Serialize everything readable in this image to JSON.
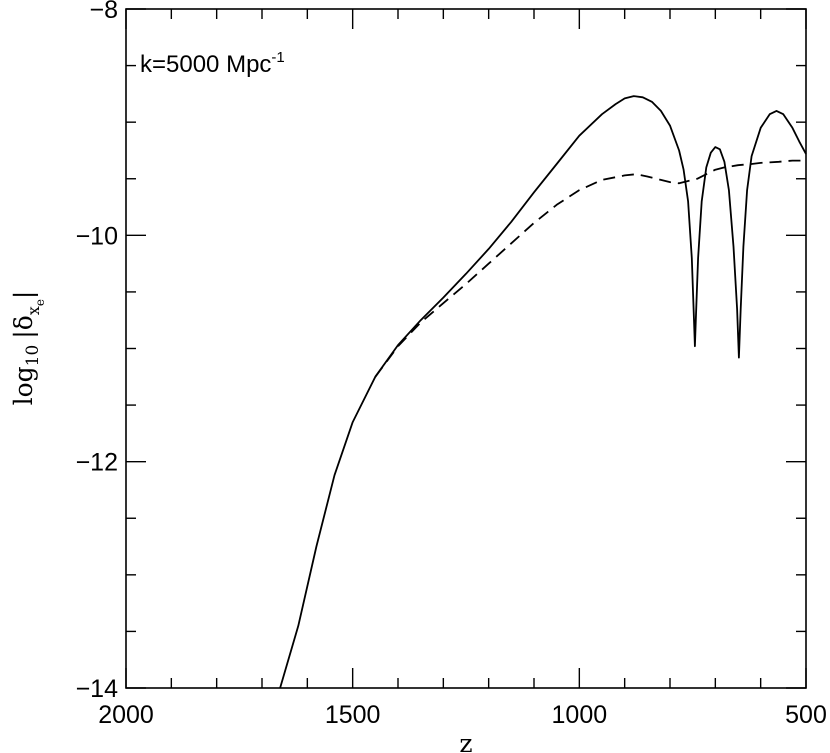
{
  "chart_data": {
    "type": "line",
    "title": "",
    "annotation": "k=5000 Mpc",
    "annotation_superscript": "-1",
    "xlabel": "z",
    "ylabel": "log",
    "ylabel_subscript": "10",
    "ylabel_symbol": "|δ",
    "ylabel_symbol_sub": "x",
    "ylabel_symbol_subsub": "e",
    "ylabel_end": "|",
    "xlim": [
      2000,
      500
    ],
    "ylim": [
      -14,
      -8
    ],
    "x_ticks": [
      2000,
      1500,
      1000,
      500
    ],
    "x_tick_labels": [
      "2000",
      "1500",
      "1000",
      "500"
    ],
    "y_ticks": [
      -14,
      -12,
      -10,
      -8
    ],
    "y_tick_labels": [
      "−14",
      "−12",
      "−10",
      "−8"
    ],
    "x_minor_step": 100,
    "y_minor_step": 0.5,
    "grid": false,
    "series": [
      {
        "style": "solid",
        "color": "#000000",
        "points": [
          [
            1660,
            -14.0
          ],
          [
            1620,
            -13.45
          ],
          [
            1580,
            -12.75
          ],
          [
            1540,
            -12.12
          ],
          [
            1500,
            -11.65
          ],
          [
            1450,
            -11.25
          ],
          [
            1400,
            -10.97
          ],
          [
            1350,
            -10.75
          ],
          [
            1300,
            -10.55
          ],
          [
            1250,
            -10.34
          ],
          [
            1200,
            -10.12
          ],
          [
            1150,
            -9.88
          ],
          [
            1100,
            -9.62
          ],
          [
            1050,
            -9.37
          ],
          [
            1000,
            -9.12
          ],
          [
            950,
            -8.93
          ],
          [
            920,
            -8.84
          ],
          [
            900,
            -8.79
          ],
          [
            880,
            -8.77
          ],
          [
            860,
            -8.78
          ],
          [
            840,
            -8.82
          ],
          [
            820,
            -8.9
          ],
          [
            800,
            -9.03
          ],
          [
            780,
            -9.25
          ],
          [
            770,
            -9.42
          ],
          [
            760,
            -9.7
          ],
          [
            752,
            -10.2
          ],
          [
            747,
            -10.75
          ],
          [
            745,
            -10.98
          ],
          [
            743,
            -10.75
          ],
          [
            738,
            -10.2
          ],
          [
            730,
            -9.7
          ],
          [
            720,
            -9.4
          ],
          [
            710,
            -9.27
          ],
          [
            700,
            -9.22
          ],
          [
            690,
            -9.24
          ],
          [
            680,
            -9.35
          ],
          [
            670,
            -9.6
          ],
          [
            660,
            -10.1
          ],
          [
            652,
            -10.65
          ],
          [
            648,
            -11.08
          ],
          [
            644,
            -10.65
          ],
          [
            638,
            -10.1
          ],
          [
            630,
            -9.6
          ],
          [
            620,
            -9.3
          ],
          [
            600,
            -9.05
          ],
          [
            580,
            -8.93
          ],
          [
            565,
            -8.9
          ],
          [
            550,
            -8.93
          ],
          [
            530,
            -9.05
          ],
          [
            515,
            -9.17
          ],
          [
            500,
            -9.28
          ]
        ]
      },
      {
        "style": "dashed",
        "color": "#000000",
        "points": [
          [
            1450,
            -11.25
          ],
          [
            1400,
            -10.98
          ],
          [
            1350,
            -10.77
          ],
          [
            1300,
            -10.6
          ],
          [
            1250,
            -10.43
          ],
          [
            1200,
            -10.25
          ],
          [
            1150,
            -10.07
          ],
          [
            1100,
            -9.89
          ],
          [
            1050,
            -9.73
          ],
          [
            1000,
            -9.6
          ],
          [
            950,
            -9.51
          ],
          [
            900,
            -9.47
          ],
          [
            875,
            -9.46
          ],
          [
            850,
            -9.48
          ],
          [
            820,
            -9.51
          ],
          [
            800,
            -9.53
          ],
          [
            780,
            -9.54
          ],
          [
            760,
            -9.52
          ],
          [
            740,
            -9.5
          ],
          [
            720,
            -9.46
          ],
          [
            700,
            -9.42
          ],
          [
            680,
            -9.4
          ],
          [
            650,
            -9.38
          ],
          [
            620,
            -9.37
          ],
          [
            600,
            -9.36
          ],
          [
            560,
            -9.35
          ],
          [
            530,
            -9.34
          ],
          [
            500,
            -9.34
          ]
        ]
      }
    ]
  }
}
